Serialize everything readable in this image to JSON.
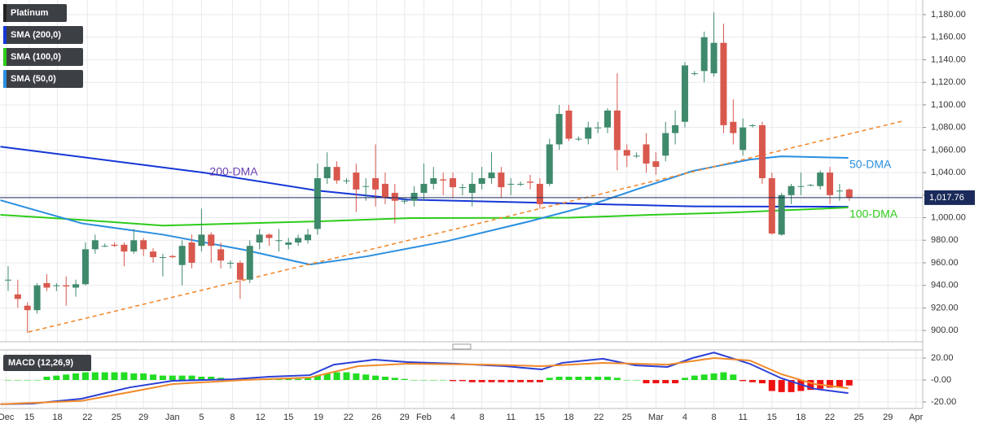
{
  "chart_data": [
    {
      "type": "candlestick",
      "xlim": [
        -0.84,
        94.6
      ],
      "ylim": [
        890,
        1193
      ],
      "grid": true,
      "xticks": [
        {
          "value": -0.2,
          "label": "Dec"
        },
        {
          "value": 2.2,
          "label": "15"
        },
        {
          "value": 5.1,
          "label": "18"
        },
        {
          "value": 8.2,
          "label": "22"
        },
        {
          "value": 11.2,
          "label": "25"
        },
        {
          "value": 14,
          "label": "29"
        },
        {
          "value": 17,
          "label": "Jan"
        },
        {
          "value": 20,
          "label": "5"
        },
        {
          "value": 23.2,
          "label": "8"
        },
        {
          "value": 26.1,
          "label": "12"
        },
        {
          "value": 29,
          "label": "15"
        },
        {
          "value": 32.1,
          "label": "19"
        },
        {
          "value": 35.2,
          "label": "22"
        },
        {
          "value": 38.1,
          "label": "26"
        },
        {
          "value": 41,
          "label": "29"
        },
        {
          "value": 43,
          "label": "Feb"
        },
        {
          "value": 46,
          "label": "4"
        },
        {
          "value": 49,
          "label": "8"
        },
        {
          "value": 52,
          "label": "11"
        },
        {
          "value": 55,
          "label": "15"
        },
        {
          "value": 58,
          "label": "18"
        },
        {
          "value": 61.1,
          "label": "22"
        },
        {
          "value": 64,
          "label": "25"
        },
        {
          "value": 67,
          "label": "Mar"
        },
        {
          "value": 70,
          "label": "4"
        },
        {
          "value": 73,
          "label": "8"
        },
        {
          "value": 76,
          "label": "11"
        },
        {
          "value": 79,
          "label": "15"
        },
        {
          "value": 82,
          "label": "18"
        },
        {
          "value": 85,
          "label": "22"
        },
        {
          "value": 88,
          "label": "25"
        },
        {
          "value": 91,
          "label": "29"
        },
        {
          "value": 93.9,
          "label": "Apr"
        }
      ],
      "yticks": [
        {
          "value": 900,
          "label": "900.00"
        },
        {
          "value": 920,
          "label": "920.00"
        },
        {
          "value": 940,
          "label": "940.00"
        },
        {
          "value": 960,
          "label": "960.00"
        },
        {
          "value": 980,
          "label": "980.00"
        },
        {
          "value": 1000,
          "label": "1,000.00"
        },
        {
          "value": 1020,
          "label": "1,020.00"
        },
        {
          "value": 1040,
          "label": "1,040.00"
        },
        {
          "value": 1060,
          "label": "1,060.00"
        },
        {
          "value": 1080,
          "label": "1,080.00"
        },
        {
          "value": 1100,
          "label": "1,100.00"
        },
        {
          "value": 1120,
          "label": "1,120.00"
        },
        {
          "value": 1140,
          "label": "1,140.00"
        },
        {
          "value": 1160,
          "label": "1,160.00"
        },
        {
          "value": 1180,
          "label": "1,180.00"
        }
      ],
      "candles": {
        "name": "Platinum",
        "color": "#222222",
        "up_color": "#3f8a6c",
        "down_color": "#d9584e",
        "open": [
          945,
          932,
          922,
          918,
          942,
          940,
          940,
          938,
          941,
          972,
          975,
          976,
          976,
          970,
          980,
          970,
          965,
          966,
          958,
          978,
          975,
          985,
          972,
          960,
          960,
          945,
          978,
          985,
          980,
          976,
          978,
          980,
          990,
          1035,
          1045,
          1033,
          1040,
          1028,
          1035,
          1030,
          1022,
          1015,
          1015,
          1022,
          1030,
          1034,
          1035,
          1027,
          1022,
          1030,
          1035,
          1040,
          1030,
          1030,
          1032,
          1030,
          1030,
          1065,
          1095,
          1070,
          1070,
          1080,
          1080,
          1095,
          1060,
          1055,
          1065,
          1050,
          1055,
          1075,
          1085,
          1128,
          1130,
          1128,
          1155,
          1085,
          1060,
          1082,
          1082,
          1035,
          985,
          1020,
          1028,
          1029,
          1028,
          1040,
          1024,
          1025
        ],
        "high": [
          957,
          945,
          925,
          942,
          950,
          942,
          948,
          945,
          978,
          985,
          977,
          978,
          978,
          990,
          982,
          973,
          968,
          967,
          980,
          985,
          1008,
          987,
          978,
          962,
          962,
          980,
          990,
          986,
          990,
          982,
          985,
          990,
          1048,
          1058,
          1050,
          1035,
          1048,
          1035,
          1065,
          1040,
          1030,
          1018,
          1028,
          1048,
          1045,
          1040,
          1040,
          1030,
          1040,
          1045,
          1058,
          1045,
          1035,
          1032,
          1038,
          1035,
          1070,
          1100,
          1100,
          1072,
          1085,
          1085,
          1097,
          1128,
          1065,
          1058,
          1075,
          1058,
          1085,
          1095,
          1138,
          1130,
          1165,
          1182,
          1172,
          1105,
          1088,
          1083,
          1085,
          1040,
          1022,
          1030,
          1040,
          1030,
          1042,
          1045,
          1030,
          1026
        ],
        "low": [
          935,
          920,
          898,
          915,
          935,
          935,
          922,
          930,
          940,
          968,
          974,
          974,
          957,
          968,
          966,
          960,
          948,
          964,
          940,
          955,
          970,
          960,
          955,
          955,
          928,
          942,
          972,
          975,
          970,
          972,
          975,
          977,
          985,
          1030,
          1030,
          1030,
          1005,
          1015,
          1010,
          1012,
          995,
          1012,
          1010,
          1015,
          1025,
          1020,
          1018,
          1020,
          1010,
          1025,
          1030,
          1018,
          1020,
          1028,
          1025,
          1008,
          1028,
          1060,
          1068,
          1068,
          1065,
          1075,
          1075,
          1042,
          1045,
          1053,
          1040,
          1038,
          1050,
          1065,
          1080,
          1126,
          1120,
          1125,
          1075,
          1065,
          1055,
          1080,
          1030,
          985,
          984,
          1012,
          1020,
          1028,
          1025,
          1012,
          1015,
          1015
        ],
        "close": [
          945,
          928,
          918,
          940,
          938,
          940,
          939,
          941,
          972,
          980,
          975,
          975,
          970,
          980,
          972,
          965,
          965,
          965,
          975,
          960,
          985,
          975,
          962,
          960,
          945,
          975,
          985,
          982,
          980,
          978,
          982,
          985,
          1035,
          1045,
          1033,
          1033,
          1025,
          1028,
          1025,
          1018,
          1015,
          1015,
          1022,
          1030,
          1035,
          1033,
          1027,
          1027,
          1030,
          1035,
          1040,
          1027,
          1030,
          1030,
          1031,
          1012,
          1065,
          1092,
          1070,
          1070,
          1080,
          1080,
          1095,
          1060,
          1055,
          1055,
          1048,
          1045,
          1075,
          1082,
          1135,
          1128,
          1160,
          1155,
          1082,
          1075,
          1080,
          1082,
          1035,
          986,
          1020,
          1028,
          1028,
          1029,
          1040,
          1020,
          1024,
          1017.76
        ]
      },
      "series": [
        {
          "name": "SMA (200,0)",
          "label": "200-DMA",
          "label_color": "#6a3fb0",
          "color": "#1536d6",
          "x": [
            -0.8,
            20.2,
            32,
            41.3,
            58.1,
            70.8,
            86.9
          ],
          "values": [
            1063,
            1040,
            1024,
            1016,
            1012.6,
            1010,
            1009.7
          ]
        },
        {
          "name": "SMA (100,0)",
          "label": "100-DMA",
          "label_color": "#2ecc1a",
          "color": "#2ecc1a",
          "x": [
            -0.8,
            7.6,
            16,
            24.4,
            32,
            41.3,
            58.1,
            66.5,
            75,
            86.9
          ],
          "values": [
            1002.5,
            998,
            993,
            995,
            996.7,
            999.6,
            1000,
            1002.5,
            1004.6,
            1009
          ]
        },
        {
          "name": "SMA (50,0)",
          "label": "50-DMA",
          "label_color": "#2a8fe0",
          "color": "#2a8fe0",
          "x": [
            -0.8,
            7.6,
            16,
            24.4,
            31.2,
            37.1,
            45.5,
            53.9,
            59.8,
            64.9,
            70.8,
            76.7,
            80,
            86.9
          ],
          "values": [
            1015.5,
            995,
            985,
            971.5,
            958.5,
            965.7,
            979.4,
            996.7,
            1010,
            1024.8,
            1041.4,
            1051.5,
            1054.4,
            1053
          ]
        },
        {
          "color": "#f28a2e",
          "dash": true,
          "x": [
            2.1,
            92.7
          ],
          "values": [
            898.6,
            1086
          ]
        }
      ],
      "last_price": 1017.76,
      "last_price_label": "1,017.76"
    },
    {
      "type": "macd",
      "name": "MACD (12,26,9)",
      "xlim": [
        -0.84,
        94.6
      ],
      "ylim": [
        -25.9,
        27.4
      ],
      "yticks": [
        {
          "value": 20,
          "label": "20.00"
        },
        {
          "value": 0,
          "label": "-0.00"
        },
        {
          "value": -20,
          "label": "-20.00"
        }
      ],
      "histogram": {
        "up_color": "#22dd22",
        "down_color": "#ee1111",
        "values": [
          0,
          0,
          0,
          0,
          3,
          4,
          5,
          6,
          7,
          7,
          7,
          7,
          7,
          6,
          6,
          5,
          4,
          4,
          4,
          4,
          3,
          3,
          2,
          1,
          0,
          0,
          1,
          1,
          1,
          1,
          1,
          2,
          4,
          6,
          7,
          7,
          6,
          5,
          4,
          3,
          2,
          1,
          0,
          0,
          0,
          0,
          -1,
          -1,
          -2,
          -2,
          -2,
          -2,
          -2,
          -2,
          -2,
          -2,
          2,
          3,
          3,
          3,
          3,
          3,
          3,
          2,
          0,
          0,
          -3,
          -3,
          -3,
          -3,
          2,
          4,
          5,
          6,
          7,
          5,
          -1,
          -2,
          -3,
          -10,
          -11,
          -11,
          -10,
          -9,
          -8,
          -7,
          -6,
          -5
        ]
      },
      "series": [
        {
          "color": "#2b3fd6",
          "x": [
            -0.8,
            2.5,
            7.6,
            12.6,
            17,
            23.2,
            27,
            31.2,
            33.7,
            37.9,
            41.3,
            46.3,
            51.4,
            55.2,
            57.3,
            61.5,
            64.9,
            68.2,
            70.8,
            73,
            76.7,
            80,
            83.4,
            86.9
          ],
          "values": [
            -22,
            -21.5,
            -17,
            -6.7,
            -0.7,
            0.7,
            3,
            4.4,
            14,
            18.5,
            16.3,
            14.8,
            12.6,
            9.6,
            15.6,
            19.3,
            13.3,
            11.9,
            20,
            25,
            14.8,
            1.5,
            -8,
            -11.9
          ]
        },
        {
          "color": "#f08a2a",
          "x": [
            -0.8,
            7.6,
            12.6,
            17,
            24.4,
            31.2,
            36.2,
            41.3,
            49.7,
            55.2,
            61.5,
            68.2,
            73,
            76.7,
            80,
            83.4,
            86.9
          ],
          "values": [
            -22,
            -19,
            -11,
            -3.7,
            0,
            2.2,
            12.6,
            14.8,
            14,
            12.6,
            15.6,
            14,
            20,
            17.8,
            5.2,
            -3.7,
            -7.4
          ]
        }
      ]
    }
  ]
}
